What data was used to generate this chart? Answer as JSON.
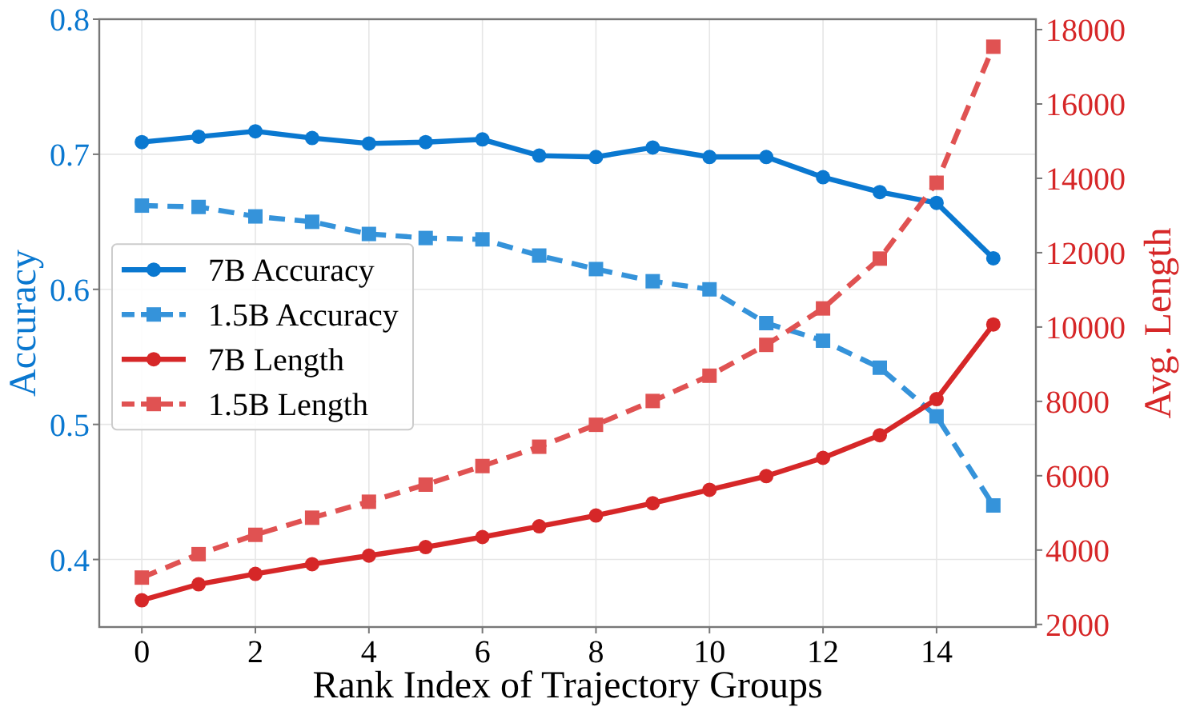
{
  "chart_data": {
    "type": "line",
    "xlabel": "Rank Index of Trajectory Groups",
    "ylabel": "Accuracy",
    "y2label": "Avg. Length",
    "x": [
      0,
      1,
      2,
      3,
      4,
      5,
      6,
      7,
      8,
      9,
      10,
      11,
      12,
      13,
      14,
      15
    ],
    "xlim": [
      -0.75,
      15.75
    ],
    "xticks": [
      0,
      2,
      4,
      6,
      8,
      10,
      12,
      14
    ],
    "ylim": [
      0.35,
      0.8
    ],
    "yticks": [
      0.4,
      0.5,
      0.6,
      0.7,
      0.8
    ],
    "y2lim": [
      1930,
      18280
    ],
    "y2ticks": [
      2000,
      4000,
      6000,
      8000,
      10000,
      12000,
      14000,
      16000,
      18000
    ],
    "grid": true,
    "legend": "left",
    "series": [
      {
        "name": "7B Accuracy",
        "color": "#0a78d0",
        "marker": "circle",
        "line_style": "solid",
        "values": [
          0.709,
          0.713,
          0.717,
          0.712,
          0.708,
          0.709,
          0.711,
          0.699,
          0.698,
          0.705,
          0.698,
          0.698,
          0.683,
          0.672,
          0.664,
          0.623
        ]
      },
      {
        "name": "1.5B Accuracy",
        "color": "#3593da",
        "marker": "square",
        "line_style": "dashed",
        "values": [
          0.662,
          0.661,
          0.654,
          0.65,
          0.641,
          0.638,
          0.637,
          0.625,
          0.615,
          0.606,
          0.6,
          0.575,
          0.562,
          0.542,
          0.506,
          0.44
        ]
      },
      {
        "name": "7B Length",
        "color": "#d62728",
        "marker": "circle",
        "line_style": "solid",
        "axis": "y2",
        "values": [
          2650,
          3080,
          3360,
          3620,
          3850,
          4080,
          4350,
          4640,
          4930,
          5260,
          5620,
          5990,
          6480,
          7090,
          8060,
          10070
        ]
      },
      {
        "name": "1.5B Length",
        "color": "#e05252",
        "marker": "square",
        "line_style": "dashed",
        "axis": "y2",
        "values": [
          3260,
          3890,
          4410,
          4870,
          5300,
          5760,
          6260,
          6780,
          7370,
          8010,
          8690,
          9520,
          10500,
          11840,
          13880,
          17540
        ]
      }
    ]
  }
}
